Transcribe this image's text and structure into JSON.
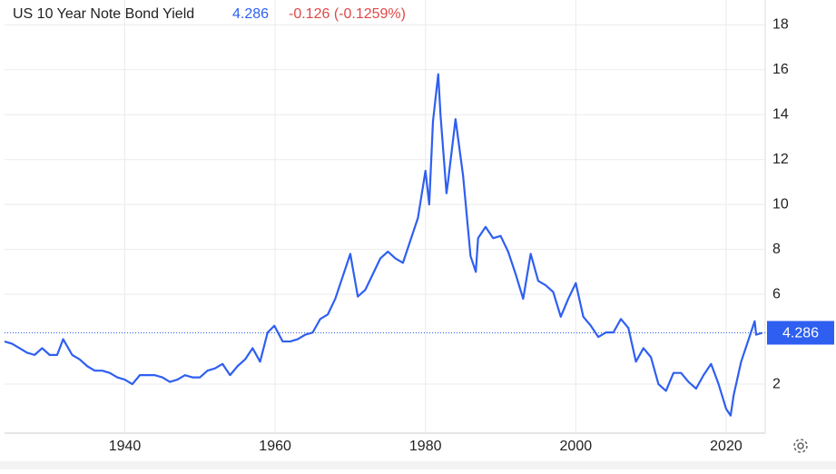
{
  "chart_data": {
    "type": "line",
    "title": "US 10 Year Note Bond Yield",
    "last_value": 4.286,
    "change": "-0.126 (-0.1259%)",
    "x": [
      1924,
      1925,
      1926,
      1927,
      1928,
      1929,
      1930,
      1931,
      1931.8,
      1933,
      1934,
      1935,
      1936,
      1937,
      1938,
      1939,
      1940,
      1941,
      1942,
      1943,
      1944,
      1945,
      1946,
      1947,
      1948,
      1949,
      1950,
      1951,
      1952,
      1953,
      1954,
      1955,
      1956,
      1957,
      1958,
      1959,
      1959.9,
      1961,
      1962,
      1963,
      1964,
      1965,
      1966,
      1967,
      1968,
      1969,
      1970,
      1971,
      1972,
      1973,
      1974,
      1975,
      1976,
      1977,
      1978,
      1979,
      1980,
      1980.5,
      1981,
      1981.7,
      1982,
      1982.8,
      1983,
      1984,
      1985,
      1986,
      1986.7,
      1987,
      1988,
      1989,
      1990,
      1991,
      1992,
      1993,
      1994,
      1995,
      1996,
      1997,
      1998,
      1999,
      2000,
      2001,
      2002,
      2003,
      2004,
      2005,
      2006,
      2007,
      2008,
      2009,
      2010,
      2011,
      2012,
      2013,
      2014,
      2015,
      2016,
      2017,
      2018,
      2019,
      2020,
      2020.6,
      2021,
      2022,
      2023,
      2023.8,
      2024,
      2024.8
    ],
    "series": [
      {
        "name": "US 10 Year Note Bond Yield",
        "color": "#2f5ff0",
        "values": [
          3.9,
          3.8,
          3.6,
          3.4,
          3.3,
          3.6,
          3.3,
          3.3,
          4.0,
          3.3,
          3.1,
          2.8,
          2.6,
          2.6,
          2.5,
          2.3,
          2.2,
          2.0,
          2.4,
          2.4,
          2.4,
          2.3,
          2.1,
          2.2,
          2.4,
          2.3,
          2.3,
          2.6,
          2.7,
          2.9,
          2.4,
          2.8,
          3.1,
          3.6,
          3.0,
          4.3,
          4.6,
          3.9,
          3.9,
          4.0,
          4.2,
          4.3,
          4.9,
          5.1,
          5.8,
          6.8,
          7.8,
          5.9,
          6.2,
          6.9,
          7.6,
          7.9,
          7.6,
          7.4,
          8.4,
          9.4,
          11.5,
          10.0,
          13.7,
          15.8,
          14.0,
          10.5,
          11.0,
          13.8,
          11.3,
          7.7,
          7.0,
          8.5,
          9.0,
          8.5,
          8.6,
          7.9,
          6.9,
          5.8,
          7.8,
          6.6,
          6.4,
          6.1,
          5.0,
          5.8,
          6.5,
          5.0,
          4.6,
          4.1,
          4.3,
          4.3,
          4.9,
          4.5,
          3.0,
          3.6,
          3.2,
          2.0,
          1.7,
          2.5,
          2.5,
          2.1,
          1.8,
          2.4,
          2.9,
          2.0,
          0.9,
          0.6,
          1.5,
          3.0,
          4.0,
          4.8,
          4.2,
          4.286
        ]
      }
    ],
    "xlim": [
      1924,
      2025.2
    ],
    "xticks": [
      1940,
      1960,
      1980,
      2000,
      2020
    ],
    "ylim": [
      0,
      18.7
    ],
    "yticks": [
      2,
      6,
      8,
      10,
      12,
      14,
      16,
      18
    ],
    "grid": true
  }
}
